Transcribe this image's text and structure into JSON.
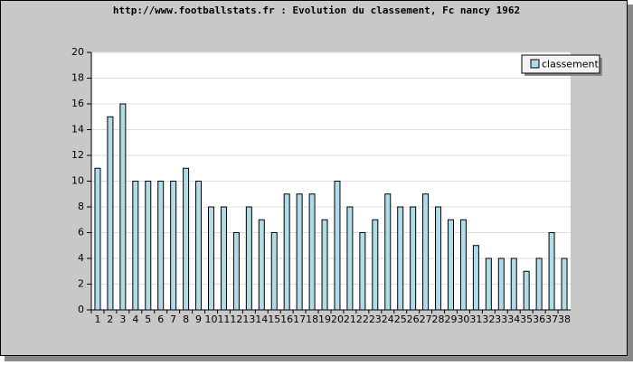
{
  "chart_data": {
    "type": "bar",
    "title": "http://www.footballstats.fr : Evolution du classement, Fc nancy 1962",
    "categories": [
      "1",
      "2",
      "3",
      "4",
      "5",
      "6",
      "7",
      "8",
      "9",
      "10",
      "11",
      "12",
      "13",
      "14",
      "15",
      "16",
      "17",
      "18",
      "19",
      "20",
      "21",
      "22",
      "23",
      "24",
      "25",
      "26",
      "27",
      "28",
      "29",
      "30",
      "31",
      "32",
      "33",
      "34",
      "35",
      "36",
      "37",
      "38"
    ],
    "series": [
      {
        "name": "classement",
        "color": "#b0dce8",
        "values": [
          11,
          15,
          16,
          10,
          10,
          10,
          10,
          11,
          10,
          8,
          8,
          6,
          8,
          7,
          6,
          9,
          9,
          9,
          7,
          10,
          8,
          6,
          7,
          9,
          8,
          8,
          9,
          8,
          7,
          7,
          5,
          4,
          4,
          4,
          3,
          4,
          6,
          4
        ]
      }
    ],
    "ylim": [
      0,
      20
    ],
    "yticks": [
      0,
      2,
      4,
      6,
      8,
      10,
      12,
      14,
      16,
      18,
      20
    ],
    "grid": true,
    "legend": "top-right"
  }
}
